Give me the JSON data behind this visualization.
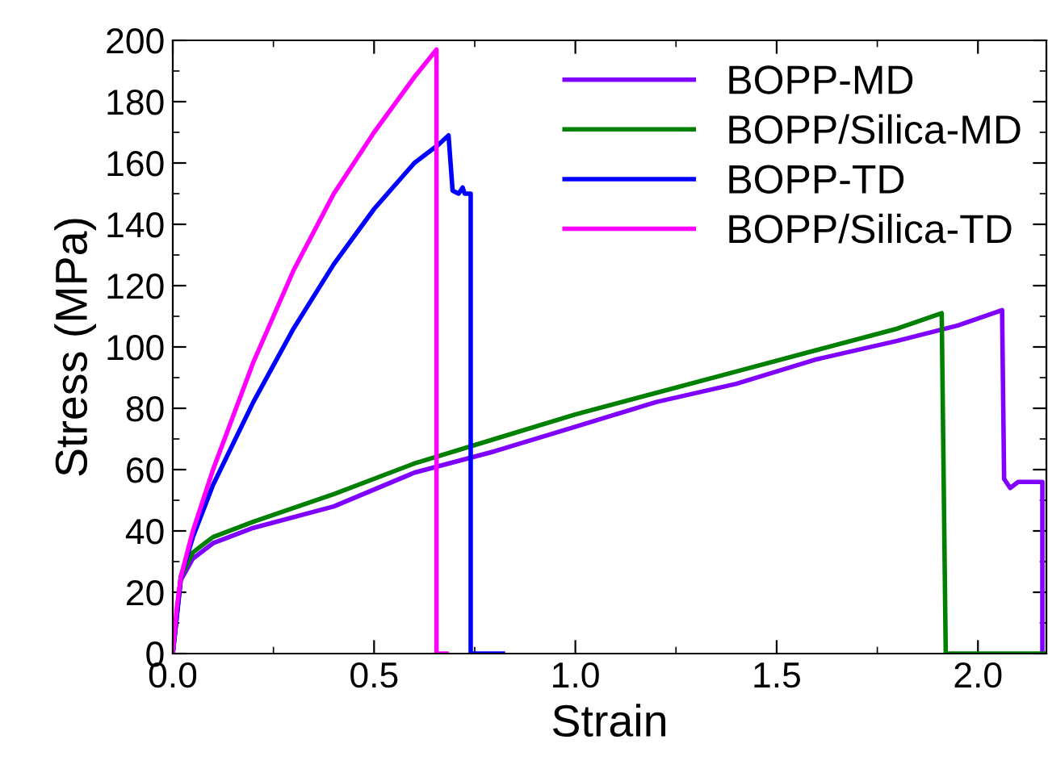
{
  "chart_data": {
    "type": "line",
    "xlabel": "Strain",
    "ylabel": "Stress (MPa)",
    "xlim": [
      0,
      2.17
    ],
    "ylim": [
      0,
      200
    ],
    "xticks": [
      {
        "value": 0,
        "label": "0.0"
      },
      {
        "value": 0.5,
        "label": "0.5"
      },
      {
        "value": 1,
        "label": "1.0"
      },
      {
        "value": 1.5,
        "label": "1.5"
      },
      {
        "value": 2,
        "label": "2.0"
      }
    ],
    "yticks": [
      0,
      20,
      40,
      60,
      80,
      100,
      120,
      140,
      160,
      180,
      200
    ],
    "grid": false,
    "legend": "top right",
    "marker": "none",
    "line_style": "solid",
    "series": [
      {
        "name": "BOPP-MD",
        "color": "#8000ff",
        "x": [
          0,
          0.02,
          0.05,
          0.1,
          0.2,
          0.4,
          0.6,
          0.8,
          1.0,
          1.2,
          1.4,
          1.6,
          1.8,
          1.95,
          2.06,
          2.065,
          2.08,
          2.1,
          2.16,
          2.16
        ],
        "values": [
          0,
          24,
          31,
          36,
          41,
          48,
          59,
          66,
          74,
          82,
          88,
          96,
          102,
          107,
          112,
          57,
          54,
          56,
          56,
          0
        ]
      },
      {
        "name": "BOPP/Silica-MD",
        "color": "#008000",
        "x": [
          0,
          0.02,
          0.05,
          0.1,
          0.2,
          0.4,
          0.6,
          0.8,
          1.0,
          1.2,
          1.4,
          1.6,
          1.8,
          1.91,
          1.92,
          2.17
        ],
        "values": [
          0,
          25,
          33,
          38,
          43,
          52,
          62,
          70,
          78,
          85,
          92,
          99,
          106,
          111,
          0,
          0
        ]
      },
      {
        "name": "BOPP-TD",
        "color": "#0000ff",
        "x": [
          0,
          0.02,
          0.05,
          0.1,
          0.2,
          0.3,
          0.4,
          0.5,
          0.6,
          0.66,
          0.685,
          0.695,
          0.71,
          0.72,
          0.725,
          0.74,
          0.74,
          0.82
        ],
        "values": [
          0,
          25,
          38,
          55,
          82,
          106,
          127,
          145,
          160,
          166,
          169,
          151,
          150,
          152,
          150,
          150,
          0,
          0
        ]
      },
      {
        "name": "BOPP/Silica-TD",
        "color": "#ff00ff",
        "x": [
          0,
          0.01,
          0.02,
          0.05,
          0.1,
          0.2,
          0.3,
          0.4,
          0.5,
          0.6,
          0.655,
          0.655,
          0.68
        ],
        "values": [
          0,
          15,
          25,
          40,
          60,
          95,
          125,
          150,
          170,
          188,
          197,
          0,
          0
        ]
      }
    ]
  }
}
